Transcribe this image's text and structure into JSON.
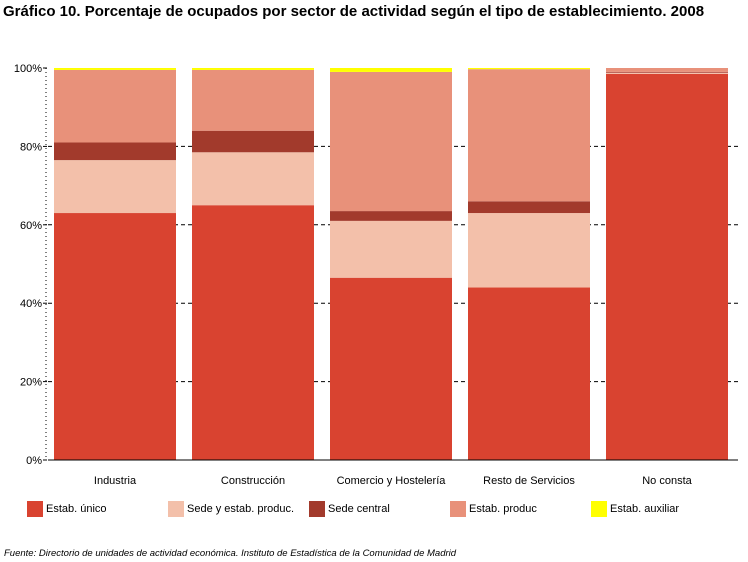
{
  "title": "Gráfico 10. Porcentaje de ocupados por sector de actividad según el tipo de establecimiento. 2008",
  "source": "Fuente: Directorio de unidades de actividad económica. Instituto de Estadística de la Comunidad de Madrid",
  "colors": {
    "estab_unico": "#d94330",
    "sede_y_estab": "#f3c0aa",
    "sede_central": "#a23a2c",
    "estab_produc": "#e8917a",
    "estab_auxiliar": "#ffff00"
  },
  "chart_data": {
    "type": "bar",
    "stacked": true,
    "categories": [
      "Industria",
      "Construcción",
      "Comercio y Hostelería",
      "Resto de Servicios",
      "No consta"
    ],
    "ylim": [
      0,
      100
    ],
    "yticks": [
      "0%",
      "20%",
      "40%",
      "60%",
      "80%",
      "100%"
    ],
    "grid": true,
    "legend_position": "bottom",
    "series": [
      {
        "name": "Estab. único",
        "values": [
          63,
          65,
          46.5,
          44,
          98.5
        ]
      },
      {
        "name": "Sede y estab. produc.",
        "values": [
          13.5,
          13.5,
          14.5,
          19,
          0.3
        ]
      },
      {
        "name": "Sede central",
        "values": [
          4.5,
          5.5,
          2.5,
          3,
          0.2
        ]
      },
      {
        "name": "Estab. produc",
        "values": [
          18.5,
          15.5,
          35.5,
          33.7,
          1
        ]
      },
      {
        "name": "Estab. auxiliar",
        "values": [
          0.5,
          0.5,
          1,
          0.3,
          0
        ]
      }
    ]
  }
}
